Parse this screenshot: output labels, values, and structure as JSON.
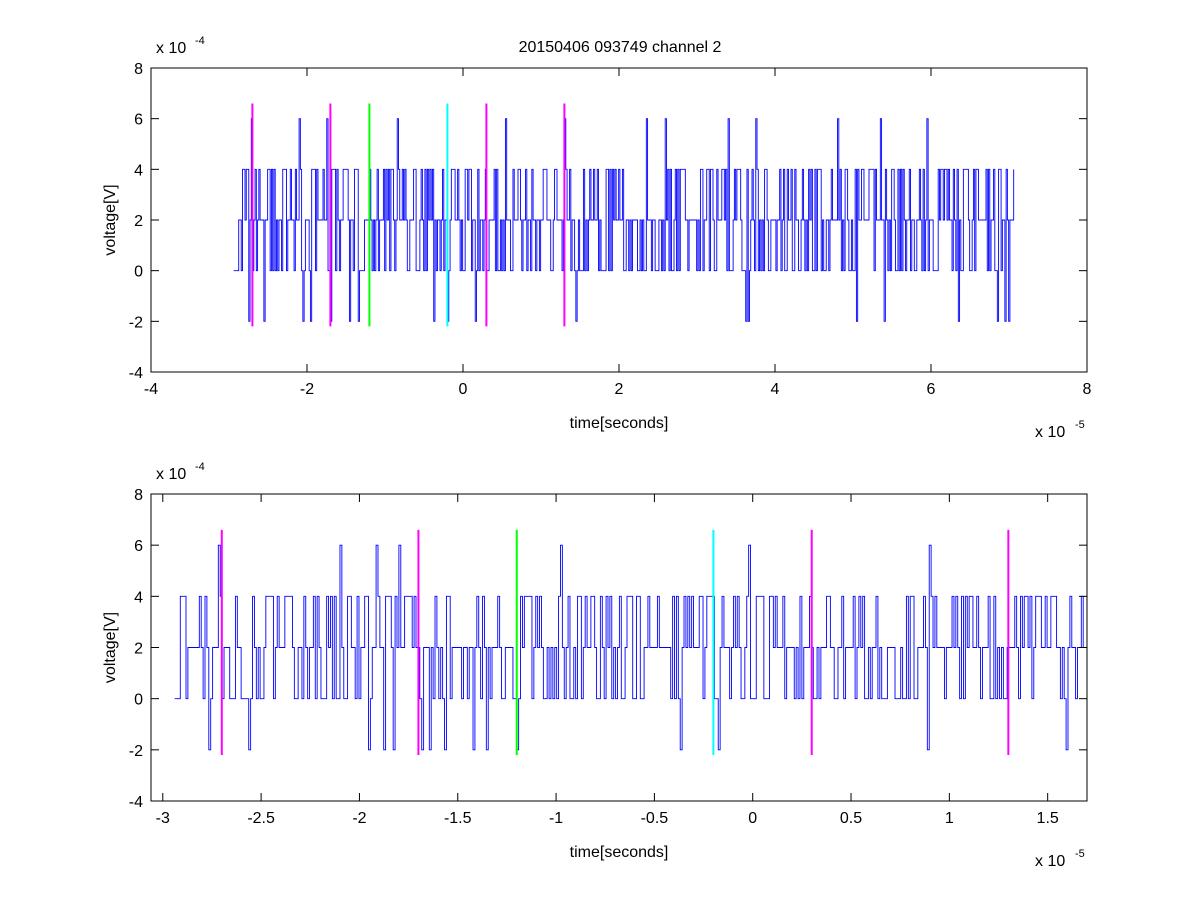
{
  "figure": {
    "title": "20150406 093749 channel 2"
  },
  "colors": {
    "signal": "#0000ff",
    "marker_magenta": "#ff00ff",
    "marker_green": "#00ff00",
    "marker_cyan": "#00ffff",
    "axes": "#000000",
    "background": "#ffffff"
  },
  "chart_data": [
    {
      "type": "line",
      "title": "20150406 093749 channel 2",
      "xlabel": "time[seconds]",
      "ylabel": "voltage[V]",
      "x_scale_label": "x 10",
      "x_scale_exp": "-5",
      "y_scale_label": "x 10",
      "y_scale_exp": "-4",
      "xlim": [
        -4,
        8
      ],
      "ylim": [
        -4,
        8
      ],
      "xticks": [
        -4,
        -2,
        0,
        2,
        4,
        6,
        8
      ],
      "xtick_labels": [
        "-4",
        "-2",
        "0",
        "2",
        "4",
        "6",
        "8"
      ],
      "yticks": [
        -4,
        -2,
        0,
        2,
        4,
        6,
        8
      ],
      "ytick_labels": [
        "-4",
        "-2",
        "0",
        "2",
        "4",
        "6",
        "8"
      ],
      "grid": false,
      "series": [
        {
          "color": "#0000ff",
          "x_range": [
            -2.94,
            7.06
          ],
          "levels": [
            -2,
            0,
            2,
            4,
            6
          ],
          "baseline": 2,
          "peaks": [
            [
              -2.72,
              6
            ],
            [
              -2.1,
              6
            ],
            [
              -1.75,
              6
            ],
            [
              -1.45,
              6
            ],
            [
              -0.85,
              6
            ],
            [
              -0.2,
              6
            ],
            [
              0.55,
              6
            ],
            [
              1.3,
              6
            ],
            [
              2.35,
              6
            ],
            [
              2.6,
              6
            ],
            [
              3.4,
              6
            ],
            [
              3.75,
              6
            ],
            [
              4.8,
              6
            ],
            [
              5.35,
              6
            ],
            [
              5.95,
              6
            ]
          ],
          "troughs": [
            [
              -2.75,
              -2
            ],
            [
              -2.55,
              -2
            ],
            [
              -2.05,
              -2
            ],
            [
              -1.95,
              -2
            ],
            [
              -1.7,
              -2
            ],
            [
              -1.45,
              -2
            ],
            [
              -1.35,
              -2
            ],
            [
              -0.38,
              -2
            ],
            [
              -0.2,
              -2
            ],
            [
              0.15,
              -2
            ],
            [
              1.45,
              -2
            ],
            [
              3.62,
              -2
            ],
            [
              3.65,
              -2
            ],
            [
              5.4,
              -2
            ],
            [
              5.05,
              -2
            ],
            [
              6.35,
              -2
            ],
            [
              6.85,
              -2
            ],
            [
              6.95,
              -2
            ],
            [
              7.0,
              -2
            ]
          ]
        }
      ],
      "markers": [
        {
          "x": -2.7,
          "ymin": -2.2,
          "ymax": 6.6,
          "color": "#ff00ff"
        },
        {
          "x": -1.7,
          "ymin": -2.2,
          "ymax": 6.6,
          "color": "#ff00ff"
        },
        {
          "x": -1.2,
          "ymin": -2.2,
          "ymax": 6.6,
          "color": "#00ff00"
        },
        {
          "x": -0.2,
          "ymin": -2.2,
          "ymax": 6.6,
          "color": "#00ffff"
        },
        {
          "x": 0.3,
          "ymin": -2.2,
          "ymax": 6.6,
          "color": "#ff00ff"
        },
        {
          "x": 1.3,
          "ymin": -2.2,
          "ymax": 6.6,
          "color": "#ff00ff"
        }
      ]
    },
    {
      "type": "line",
      "title": "",
      "xlabel": "time[seconds]",
      "ylabel": "voltage[V]",
      "x_scale_label": "x 10",
      "x_scale_exp": "-5",
      "y_scale_label": "x 10",
      "y_scale_exp": "-4",
      "xlim": [
        -3.06,
        1.7
      ],
      "ylim": [
        -4,
        8
      ],
      "xticks": [
        -3,
        -2.5,
        -2,
        -1.5,
        -1,
        -0.5,
        0,
        0.5,
        1,
        1.5
      ],
      "xtick_labels": [
        "-3",
        "-2.5",
        "-2",
        "-1.5",
        "-1",
        "-0.5",
        "0",
        "0.5",
        "1",
        "1.5"
      ],
      "yticks": [
        -4,
        -2,
        0,
        2,
        4,
        6,
        8
      ],
      "ytick_labels": [
        "-4",
        "-2",
        "0",
        "2",
        "4",
        "6",
        "8"
      ],
      "grid": false,
      "series": [
        {
          "color": "#0000ff",
          "x_range": [
            -2.94,
            1.7
          ],
          "levels": [
            -2,
            0,
            2,
            4,
            6
          ],
          "baseline": 2,
          "peaks": [
            [
              -2.72,
              6
            ],
            [
              -2.1,
              6
            ],
            [
              -1.92,
              6
            ],
            [
              -1.8,
              6
            ],
            [
              -1.42,
              6
            ],
            [
              -0.98,
              6
            ],
            [
              -0.02,
              6
            ],
            [
              0.9,
              6
            ]
          ],
          "troughs": [
            [
              -2.77,
              -2
            ],
            [
              -2.56,
              -2
            ],
            [
              -1.95,
              -2
            ],
            [
              -1.88,
              -2
            ],
            [
              -1.83,
              -2
            ],
            [
              -1.68,
              -2
            ],
            [
              -1.64,
              -2
            ],
            [
              -1.57,
              -2
            ],
            [
              -1.42,
              -2
            ],
            [
              -1.35,
              -2
            ],
            [
              -1.2,
              -2
            ],
            [
              -0.37,
              -2
            ],
            [
              -0.18,
              -2
            ],
            [
              0.89,
              -2
            ],
            [
              1.59,
              -2
            ]
          ]
        }
      ],
      "markers": [
        {
          "x": -2.7,
          "ymin": -2.2,
          "ymax": 6.6,
          "color": "#ff00ff"
        },
        {
          "x": -1.7,
          "ymin": -2.2,
          "ymax": 6.6,
          "color": "#ff00ff"
        },
        {
          "x": -1.2,
          "ymin": -2.2,
          "ymax": 6.6,
          "color": "#00ff00"
        },
        {
          "x": -0.2,
          "ymin": -2.2,
          "ymax": 6.6,
          "color": "#00ffff"
        },
        {
          "x": 0.3,
          "ymin": -2.2,
          "ymax": 6.6,
          "color": "#ff00ff"
        },
        {
          "x": 1.3,
          "ymin": -2.2,
          "ymax": 6.6,
          "color": "#ff00ff"
        }
      ]
    }
  ]
}
